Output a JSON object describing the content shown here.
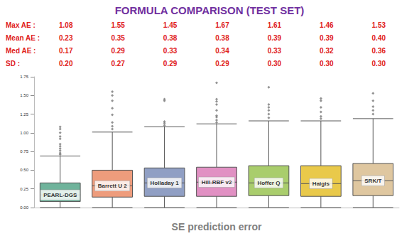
{
  "chart_data": {
    "type": "boxplot",
    "title": "FORMULA COMPARISON (TEST SET)",
    "x_label": "SE prediction error",
    "categories": [
      "PEARL-DGS",
      "Barrett U 2",
      "Holladay 1",
      "Hill-RBF v2",
      "Hoffer Q",
      "Haigis",
      "SRK/T"
    ],
    "colors": [
      "#6fb39b",
      "#ee9c7c",
      "#909fc4",
      "#e190c3",
      "#a9cd6c",
      "#e9c94a",
      "#dfc7a0"
    ],
    "values": [
      [
        0.0,
        0.08,
        0.17,
        0.33,
        0.69
      ],
      [
        0.0,
        0.14,
        0.29,
        0.5,
        1.01
      ],
      [
        0.0,
        0.15,
        0.33,
        0.53,
        1.08
      ],
      [
        0.0,
        0.15,
        0.34,
        0.54,
        1.12
      ],
      [
        0.0,
        0.16,
        0.33,
        0.56,
        1.16
      ],
      [
        0.0,
        0.15,
        0.32,
        0.56,
        1.16
      ],
      [
        0.0,
        0.16,
        0.36,
        0.59,
        1.19
      ]
    ],
    "outliers": [
      [
        0.71,
        0.73,
        0.76,
        0.79,
        0.82,
        0.85,
        0.92,
        0.95,
        1.0,
        1.05,
        1.08
      ],
      [
        1.05,
        1.09,
        1.14,
        1.24,
        1.33,
        1.43,
        1.5,
        1.55
      ],
      [
        1.1,
        1.13,
        1.15,
        1.43,
        1.45
      ],
      [
        1.14,
        1.17,
        1.21,
        1.23,
        1.3,
        1.38,
        1.42,
        1.45,
        1.67
      ],
      [
        1.2,
        1.25,
        1.3,
        1.34,
        1.38,
        1.61
      ],
      [
        1.19,
        1.22,
        1.28,
        1.34,
        1.43,
        1.46
      ],
      [
        1.25,
        1.3,
        1.35,
        1.43,
        1.53
      ]
    ],
    "ylim": [
      0,
      1.75
    ],
    "yticks": [
      {
        "value": 0,
        "label": "0.00"
      },
      {
        "value": 0.25,
        "label": "0.25"
      },
      {
        "value": 0.5,
        "label": "0.50"
      },
      {
        "value": 0.75,
        "label": "0.75"
      },
      {
        "value": 1,
        "label": "1.00"
      },
      {
        "value": 1.25,
        "label": "1.25"
      },
      {
        "value": 1.5,
        "label": "1.50"
      },
      {
        "value": 1.75,
        "label": "1.75"
      }
    ],
    "grid": false,
    "tick_labels": "y",
    "annotations": {
      "rows": [
        {
          "label": "Max AE :",
          "values": [
            "1.08",
            "1.55",
            "1.45",
            "1.67",
            "1.61",
            "1.46",
            "1.53"
          ]
        },
        {
          "label": "Mean AE :",
          "values": [
            "0.23",
            "0.35",
            "0.38",
            "0.38",
            "0.39",
            "0.39",
            "0.40"
          ]
        },
        {
          "label": "Med AE :",
          "values": [
            "0.17",
            "0.29",
            "0.33",
            "0.34",
            "0.33",
            "0.32",
            "0.36"
          ]
        },
        {
          "label": "SD :",
          "values": [
            "0.20",
            "0.27",
            "0.29",
            "0.29",
            "0.30",
            "0.30",
            "0.30"
          ]
        }
      ]
    }
  }
}
